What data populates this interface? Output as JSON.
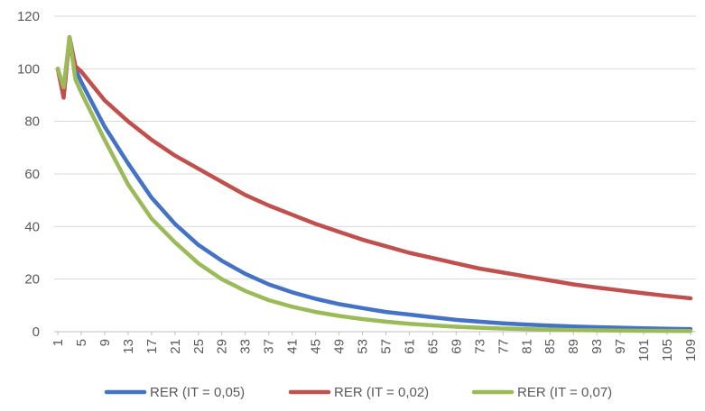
{
  "chart_data": {
    "type": "line",
    "title": "",
    "xlabel": "",
    "ylabel": "",
    "ylim": [
      0,
      120
    ],
    "y_ticks": [
      0,
      20,
      40,
      60,
      80,
      100,
      120
    ],
    "x_range": [
      1,
      109
    ],
    "x_tick_labels": [
      "1",
      "5",
      "9",
      "13",
      "17",
      "21",
      "25",
      "29",
      "33",
      "37",
      "41",
      "45",
      "49",
      "53",
      "57",
      "61",
      "65",
      "69",
      "73",
      "77",
      "81",
      "85",
      "89",
      "93",
      "97",
      "101",
      "105",
      "109"
    ],
    "grid": "horizontal",
    "legend_position": "bottom",
    "series": [
      {
        "name": "RER (IT = 0,05)",
        "color": "#4472C4",
        "points": [
          [
            1,
            100
          ],
          [
            2,
            90
          ],
          [
            3,
            112
          ],
          [
            4,
            100
          ],
          [
            5,
            95
          ],
          [
            9,
            78
          ],
          [
            13,
            64
          ],
          [
            17,
            51
          ],
          [
            21,
            41
          ],
          [
            25,
            33
          ],
          [
            29,
            27
          ],
          [
            33,
            22
          ],
          [
            37,
            18
          ],
          [
            41,
            15
          ],
          [
            45,
            12.5
          ],
          [
            49,
            10.5
          ],
          [
            53,
            9
          ],
          [
            57,
            7.5
          ],
          [
            61,
            6.5
          ],
          [
            65,
            5.5
          ],
          [
            69,
            4.5
          ],
          [
            73,
            3.8
          ],
          [
            77,
            3.2
          ],
          [
            81,
            2.7
          ],
          [
            85,
            2.3
          ],
          [
            89,
            2
          ],
          [
            93,
            1.7
          ],
          [
            97,
            1.5
          ],
          [
            101,
            1.3
          ],
          [
            105,
            1.1
          ],
          [
            109,
            1
          ]
        ]
      },
      {
        "name": "RER (IT = 0,02)",
        "color": "#C0504D",
        "points": [
          [
            1,
            100
          ],
          [
            2,
            89
          ],
          [
            3,
            112
          ],
          [
            4,
            101
          ],
          [
            5,
            99
          ],
          [
            9,
            88
          ],
          [
            13,
            80
          ],
          [
            17,
            73
          ],
          [
            21,
            67
          ],
          [
            25,
            62
          ],
          [
            29,
            57
          ],
          [
            33,
            52
          ],
          [
            37,
            48
          ],
          [
            41,
            44.5
          ],
          [
            45,
            41
          ],
          [
            49,
            38
          ],
          [
            53,
            35
          ],
          [
            57,
            32.5
          ],
          [
            61,
            30
          ],
          [
            65,
            28
          ],
          [
            69,
            26
          ],
          [
            73,
            24
          ],
          [
            77,
            22.5
          ],
          [
            81,
            21
          ],
          [
            85,
            19.5
          ],
          [
            89,
            18
          ],
          [
            93,
            16.8
          ],
          [
            97,
            15.7
          ],
          [
            101,
            14.6
          ],
          [
            105,
            13.6
          ],
          [
            109,
            12.7
          ]
        ]
      },
      {
        "name": "RER (IT = 0,07)",
        "color": "#9BBB59",
        "points": [
          [
            1,
            100
          ],
          [
            2,
            93
          ],
          [
            3,
            112
          ],
          [
            4,
            96
          ],
          [
            5,
            91
          ],
          [
            9,
            73
          ],
          [
            13,
            56
          ],
          [
            17,
            43
          ],
          [
            21,
            34
          ],
          [
            25,
            26
          ],
          [
            29,
            20
          ],
          [
            33,
            15.5
          ],
          [
            37,
            12
          ],
          [
            41,
            9.5
          ],
          [
            45,
            7.5
          ],
          [
            49,
            6
          ],
          [
            53,
            4.8
          ],
          [
            57,
            3.8
          ],
          [
            61,
            3
          ],
          [
            65,
            2.4
          ],
          [
            69,
            1.9
          ],
          [
            73,
            1.5
          ],
          [
            77,
            1.2
          ],
          [
            81,
            1
          ],
          [
            85,
            0.8
          ],
          [
            89,
            0.6
          ],
          [
            93,
            0.5
          ],
          [
            97,
            0.4
          ],
          [
            101,
            0.35
          ],
          [
            105,
            0.3
          ],
          [
            109,
            0.25
          ]
        ]
      }
    ]
  }
}
